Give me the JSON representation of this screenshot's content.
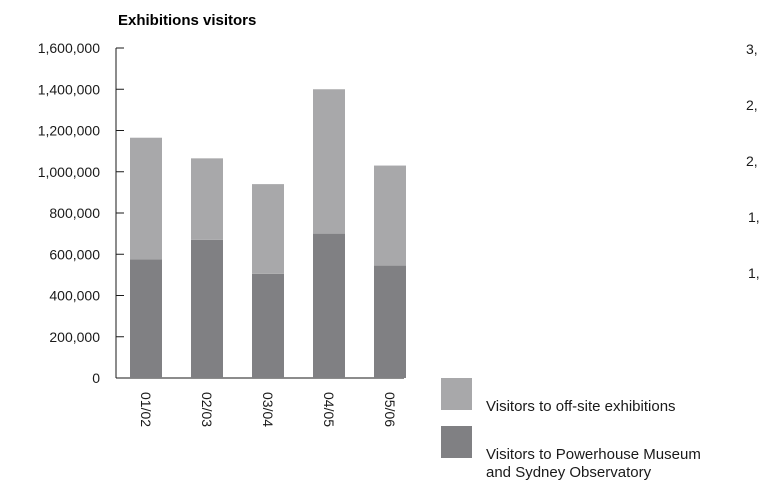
{
  "chart_data": {
    "type": "bar",
    "stacked": true,
    "title": "Exhibitions visitors",
    "xlabel": "",
    "ylabel": "",
    "categories": [
      "01/02",
      "02/03",
      "03/04",
      "04/05",
      "05/06"
    ],
    "ylim": [
      0,
      1600000
    ],
    "yticks": [
      0,
      200000,
      400000,
      600000,
      800000,
      1000000,
      1200000,
      1400000,
      1600000
    ],
    "ytick_labels": [
      "0",
      "200,000",
      "400,000",
      "600,000",
      "800,000",
      "1,000,000",
      "1,200,000",
      "1,400,000",
      "1,600,000"
    ],
    "grid": false,
    "legend_position": "bottom-right",
    "series": [
      {
        "name": "Visitors to Powerhouse Museum and Sydney Observatory",
        "legend_lines": [
          "Visitors to Powerhouse Museum",
          "and Sydney Observatory"
        ],
        "color": "#808083",
        "values": [
          575000,
          670000,
          505000,
          700000,
          545000
        ]
      },
      {
        "name": "Visitors to off-site exhibitions",
        "legend_lines": [
          "Visitors to off-site exhibitions"
        ],
        "color": "#a8a8aa",
        "values": [
          590000,
          395000,
          435000,
          700000,
          485000
        ]
      }
    ]
  },
  "right_clipped_labels": [
    "3,",
    "2,",
    "2,",
    "1,",
    "1,"
  ]
}
